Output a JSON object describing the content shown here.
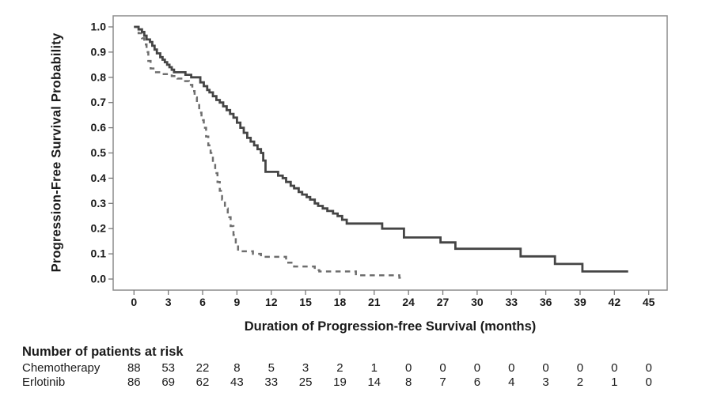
{
  "chart_data": {
    "type": "line",
    "subtype": "kaplan-meier-step",
    "title": "",
    "xlabel": "Duration of Progression-free Survival (months)",
    "ylabel": "Progression-Free Survival Probability",
    "xlim": [
      -1.8,
      46.8
    ],
    "ylim": [
      -0.045,
      1.045
    ],
    "x_ticks": [
      0,
      3,
      6,
      9,
      12,
      15,
      18,
      21,
      24,
      27,
      30,
      33,
      36,
      39,
      42,
      45
    ],
    "y_ticks": [
      "1.0",
      "0.9",
      "0.8",
      "0.7",
      "0.6",
      "0.5",
      "0.4",
      "0.3",
      "0.2",
      "0.1",
      "0.0"
    ],
    "grid": false,
    "legend": "none",
    "series": [
      {
        "name": "Chemotherapy",
        "style": "dashed",
        "color": "#6e6e6e",
        "end_time": 23.5,
        "steps": [
          [
            0,
            1.0
          ],
          [
            0.4,
            0.975
          ],
          [
            0.7,
            0.955
          ],
          [
            0.9,
            0.93
          ],
          [
            1.1,
            0.9
          ],
          [
            1.25,
            0.865
          ],
          [
            1.45,
            0.835
          ],
          [
            1.7,
            0.82
          ],
          [
            2.5,
            0.813
          ],
          [
            3.3,
            0.805
          ],
          [
            3.8,
            0.795
          ],
          [
            4.3,
            0.785
          ],
          [
            4.8,
            0.77
          ],
          [
            5.1,
            0.745
          ],
          [
            5.3,
            0.72
          ],
          [
            5.5,
            0.69
          ],
          [
            5.7,
            0.66
          ],
          [
            5.9,
            0.63
          ],
          [
            6.1,
            0.6
          ],
          [
            6.3,
            0.565
          ],
          [
            6.5,
            0.53
          ],
          [
            6.7,
            0.5
          ],
          [
            6.9,
            0.46
          ],
          [
            7.1,
            0.42
          ],
          [
            7.3,
            0.385
          ],
          [
            7.5,
            0.35
          ],
          [
            7.7,
            0.315
          ],
          [
            7.95,
            0.28
          ],
          [
            8.2,
            0.245
          ],
          [
            8.45,
            0.21
          ],
          [
            8.7,
            0.175
          ],
          [
            8.9,
            0.145
          ],
          [
            9.1,
            0.11
          ],
          [
            10.4,
            0.1
          ],
          [
            11.1,
            0.088
          ],
          [
            13.3,
            0.065
          ],
          [
            14.0,
            0.05
          ],
          [
            15.8,
            0.035
          ],
          [
            16.2,
            0.03
          ],
          [
            19.4,
            0.015
          ],
          [
            23.2,
            0.005
          ]
        ]
      },
      {
        "name": "Erlotinib",
        "style": "solid",
        "color": "#454545",
        "end_time": 43.2,
        "steps": [
          [
            0,
            1.0
          ],
          [
            0.4,
            0.99
          ],
          [
            0.7,
            0.98
          ],
          [
            0.9,
            0.965
          ],
          [
            1.1,
            0.95
          ],
          [
            1.4,
            0.94
          ],
          [
            1.6,
            0.925
          ],
          [
            1.8,
            0.91
          ],
          [
            2.0,
            0.895
          ],
          [
            2.3,
            0.88
          ],
          [
            2.5,
            0.87
          ],
          [
            2.7,
            0.86
          ],
          [
            2.9,
            0.85
          ],
          [
            3.1,
            0.84
          ],
          [
            3.3,
            0.83
          ],
          [
            3.5,
            0.82
          ],
          [
            4.5,
            0.81
          ],
          [
            5.0,
            0.8
          ],
          [
            5.8,
            0.78
          ],
          [
            6.1,
            0.765
          ],
          [
            6.4,
            0.75
          ],
          [
            6.6,
            0.74
          ],
          [
            6.9,
            0.725
          ],
          [
            7.2,
            0.71
          ],
          [
            7.5,
            0.7
          ],
          [
            7.8,
            0.685
          ],
          [
            8.1,
            0.67
          ],
          [
            8.4,
            0.655
          ],
          [
            8.7,
            0.64
          ],
          [
            9.0,
            0.62
          ],
          [
            9.3,
            0.6
          ],
          [
            9.6,
            0.58
          ],
          [
            9.9,
            0.56
          ],
          [
            10.2,
            0.545
          ],
          [
            10.5,
            0.53
          ],
          [
            10.8,
            0.515
          ],
          [
            11.1,
            0.5
          ],
          [
            11.3,
            0.47
          ],
          [
            11.5,
            0.425
          ],
          [
            12.6,
            0.41
          ],
          [
            13.0,
            0.4
          ],
          [
            13.3,
            0.385
          ],
          [
            13.7,
            0.37
          ],
          [
            14.0,
            0.36
          ],
          [
            14.4,
            0.345
          ],
          [
            14.7,
            0.335
          ],
          [
            15.1,
            0.325
          ],
          [
            15.4,
            0.315
          ],
          [
            15.8,
            0.3
          ],
          [
            16.1,
            0.29
          ],
          [
            16.5,
            0.28
          ],
          [
            16.9,
            0.27
          ],
          [
            17.4,
            0.26
          ],
          [
            17.8,
            0.25
          ],
          [
            18.2,
            0.235
          ],
          [
            18.6,
            0.22
          ],
          [
            21.7,
            0.2
          ],
          [
            23.6,
            0.165
          ],
          [
            26.8,
            0.145
          ],
          [
            28.1,
            0.12
          ],
          [
            33.8,
            0.09
          ],
          [
            36.8,
            0.06
          ],
          [
            39.2,
            0.03
          ]
        ]
      }
    ]
  },
  "risk_table": {
    "title": "Number of patients at risk",
    "times": [
      0,
      3,
      6,
      9,
      12,
      15,
      18,
      21,
      24,
      27,
      30,
      33,
      36,
      39,
      42,
      45
    ],
    "rows": [
      {
        "label": "Chemotherapy",
        "counts": [
          88,
          53,
          22,
          8,
          5,
          3,
          2,
          1,
          0,
          0,
          0,
          0,
          0,
          0,
          0,
          0
        ]
      },
      {
        "label": "Erlotinib",
        "counts": [
          86,
          69,
          62,
          43,
          33,
          25,
          19,
          14,
          8,
          7,
          6,
          4,
          3,
          2,
          1,
          0
        ]
      }
    ]
  },
  "colors": {
    "background": "#ffffff",
    "frame": "#8c8c8c",
    "tick": "#7a7a7a",
    "text": "#1a1a1a",
    "solid_curve": "#454545",
    "dashed_curve": "#6e6e6e"
  }
}
